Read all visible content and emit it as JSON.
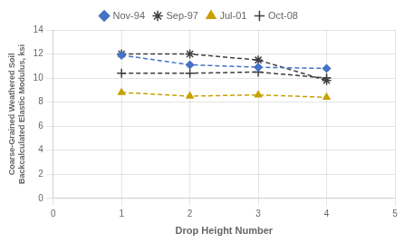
{
  "chart_data": {
    "type": "line",
    "x": [
      1,
      2,
      3,
      4
    ],
    "series": [
      {
        "name": "Nov-94",
        "color": "#4472C4",
        "marker": "diamond",
        "line_style": "dashed",
        "values": [
          11.9,
          11.1,
          10.9,
          10.8
        ]
      },
      {
        "name": "Sep-97",
        "color": "#404040",
        "marker": "star",
        "line_style": "dashed",
        "values": [
          12.0,
          12.0,
          11.5,
          9.8
        ]
      },
      {
        "name": "Jul-01",
        "color": "#C8A000",
        "marker": "triangle",
        "line_style": "dashed",
        "values": [
          8.8,
          8.5,
          8.6,
          8.4
        ]
      },
      {
        "name": "Oct-08",
        "color": "#404040",
        "marker": "plus",
        "line_style": "dashed",
        "values": [
          10.4,
          10.4,
          10.5,
          10.0
        ]
      }
    ],
    "x_label": "Drop Height Number",
    "y_label": "Coarse-Grained Weathered Soil\nBackcalculated Elastic Modulus, ksi",
    "xlim": [
      0,
      5
    ],
    "ylim": [
      0,
      14
    ],
    "xticks": [
      0,
      1,
      2,
      3,
      4,
      5
    ],
    "yticks": [
      0,
      2,
      4,
      6,
      8,
      10,
      12,
      14
    ],
    "grid": true,
    "legend": "top"
  }
}
